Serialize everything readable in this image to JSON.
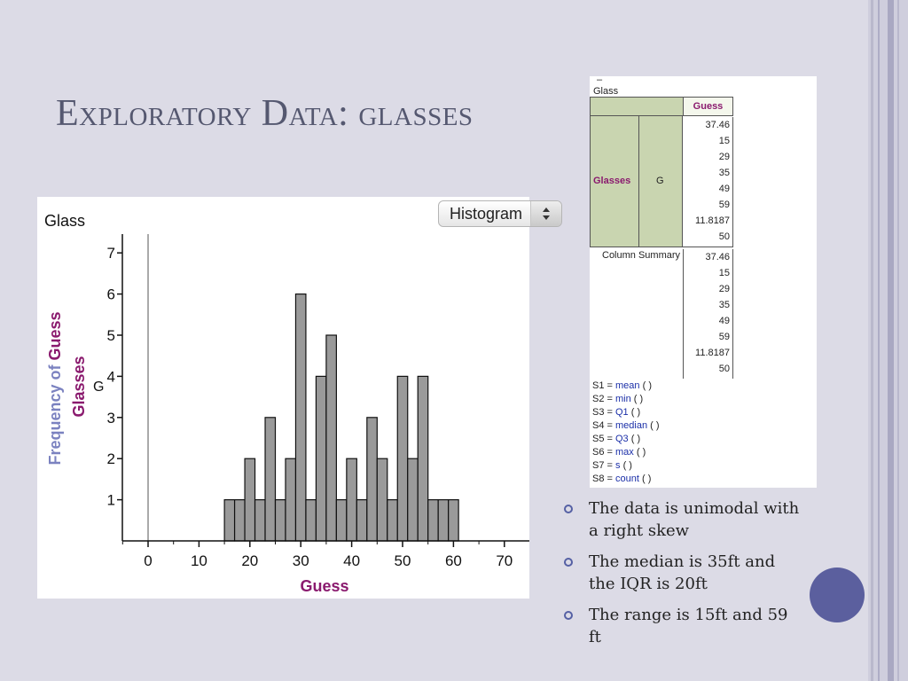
{
  "slide": {
    "title": "Exploratory Data: glasses",
    "bullets": [
      "The data is unimodal with a right skew",
      "The median is 35ft and the IQR is 20ft",
      "The range is 15ft and 59 ft"
    ],
    "colors": {
      "background": "#dcdbe6",
      "accent": "#5b5f9e",
      "title": "#555870"
    }
  },
  "chart_data": {
    "type": "bar",
    "title": "Glass",
    "xlabel": "Guess",
    "ylabel": "Frequency of Guess",
    "ylabel_parts": [
      "Frequency of ",
      "Guess"
    ],
    "split_label": "Glasses",
    "split_category": "G",
    "plot_type": "Histogram",
    "bin_width": 2,
    "xlim": [
      -5,
      75
    ],
    "ylim": [
      0,
      7.5
    ],
    "xticks": [
      0,
      10,
      20,
      30,
      40,
      50,
      60,
      70
    ],
    "yticks": [
      1,
      2,
      3,
      4,
      5,
      6,
      7
    ],
    "bin_starts": [
      15,
      17,
      19,
      21,
      23,
      25,
      27,
      29,
      31,
      33,
      35,
      37,
      39,
      41,
      43,
      45,
      47,
      49,
      51,
      53,
      55,
      57,
      59
    ],
    "values": [
      1,
      1,
      2,
      1,
      3,
      1,
      2,
      6,
      1,
      4,
      5,
      1,
      2,
      1,
      3,
      2,
      1,
      4,
      2,
      4,
      1,
      1,
      1
    ],
    "colors": {
      "bar": "#9a9a9a",
      "accent_text": "#8a1a6e"
    }
  },
  "summary_table": {
    "title": "Glass",
    "header_col": "Guess",
    "group_name": "Glasses",
    "group_value": "G",
    "group_values": [
      "37.46",
      "15",
      "29",
      "35",
      "49",
      "59",
      "11.8187",
      "50"
    ],
    "summary_label": "Column Summary",
    "summary_values": [
      "37.46",
      "15",
      "29",
      "35",
      "49",
      "59",
      "11.8187",
      "50"
    ],
    "formulas": [
      {
        "label": "S1 =",
        "fn": "mean",
        "args": "(  )"
      },
      {
        "label": "S2 =",
        "fn": "min",
        "args": "(  )"
      },
      {
        "label": "S3 =",
        "fn": "Q1",
        "args": "(  )"
      },
      {
        "label": "S4 =",
        "fn": "median",
        "args": "(  )"
      },
      {
        "label": "S5 =",
        "fn": "Q3",
        "args": "(  )"
      },
      {
        "label": "S6 =",
        "fn": "max",
        "args": "(  )"
      },
      {
        "label": "S7 =",
        "fn": "s",
        "args": "(  )"
      },
      {
        "label": "S8 =",
        "fn": "count",
        "args": "(  )"
      }
    ]
  }
}
